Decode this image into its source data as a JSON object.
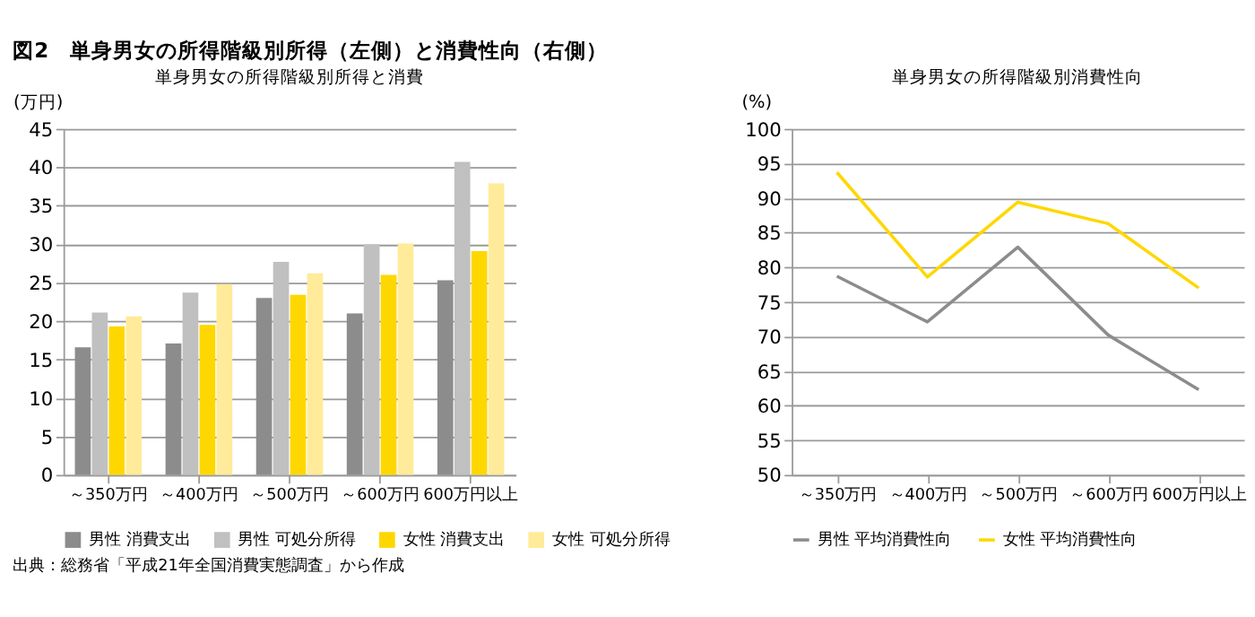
{
  "chart_data": [
    {
      "type": "bar",
      "title": "単身男女の所得階級別所得と消費",
      "ylabel": "(万円)",
      "annotations": [
        "図2　単身男女の所得階級別所得（左側）と消費性向（右側）"
      ],
      "categories": [
        "～350万円",
        "～400万円",
        "～500万円",
        "～600万円",
        "600万円以上"
      ],
      "series": [
        {
          "name": "男性 消費支出",
          "color": "#8c8c8c",
          "values": [
            16.6,
            17.1,
            23.0,
            21.0,
            25.3
          ]
        },
        {
          "name": "男性 可処分所得",
          "color": "#c0c0c0",
          "values": [
            21.1,
            23.7,
            27.7,
            30.0,
            40.7
          ]
        },
        {
          "name": "女性 消費支出",
          "color": "#ffd700",
          "values": [
            19.3,
            19.5,
            23.4,
            26.0,
            29.1
          ]
        },
        {
          "name": "女性 可処分所得",
          "color": "#ffeb99",
          "values": [
            20.6,
            24.8,
            26.2,
            30.1,
            37.9
          ]
        }
      ],
      "ylim": [
        0,
        45
      ],
      "yticks": [
        0,
        5,
        10,
        15,
        20,
        25,
        30,
        35,
        40,
        45
      ],
      "grid": "y",
      "legend": "bottom"
    },
    {
      "type": "line",
      "title": "単身男女の所得階級別消費性向",
      "ylabel": "(%)",
      "annotations": [
        "出典：総務省「平成21年全国消費実態調査」から作成"
      ],
      "categories": [
        "～350万円",
        "～400万円",
        "～500万円",
        "～600万円",
        "600万円以上"
      ],
      "series": [
        {
          "name": "男性 平均消費性向",
          "color": "#8c8c8c",
          "values": [
            78.7,
            72.1,
            82.9,
            70.2,
            62.3
          ]
        },
        {
          "name": "女性 平均消費性向",
          "color": "#ffd700",
          "values": [
            93.7,
            78.6,
            89.4,
            86.3,
            77.0
          ]
        }
      ],
      "ylim": [
        50,
        100
      ],
      "yticks": [
        50,
        55,
        60,
        65,
        70,
        75,
        80,
        85,
        90,
        95,
        100
      ],
      "grid": "y",
      "legend": "bottom",
      "marker": "none",
      "line_style": "solid"
    }
  ]
}
